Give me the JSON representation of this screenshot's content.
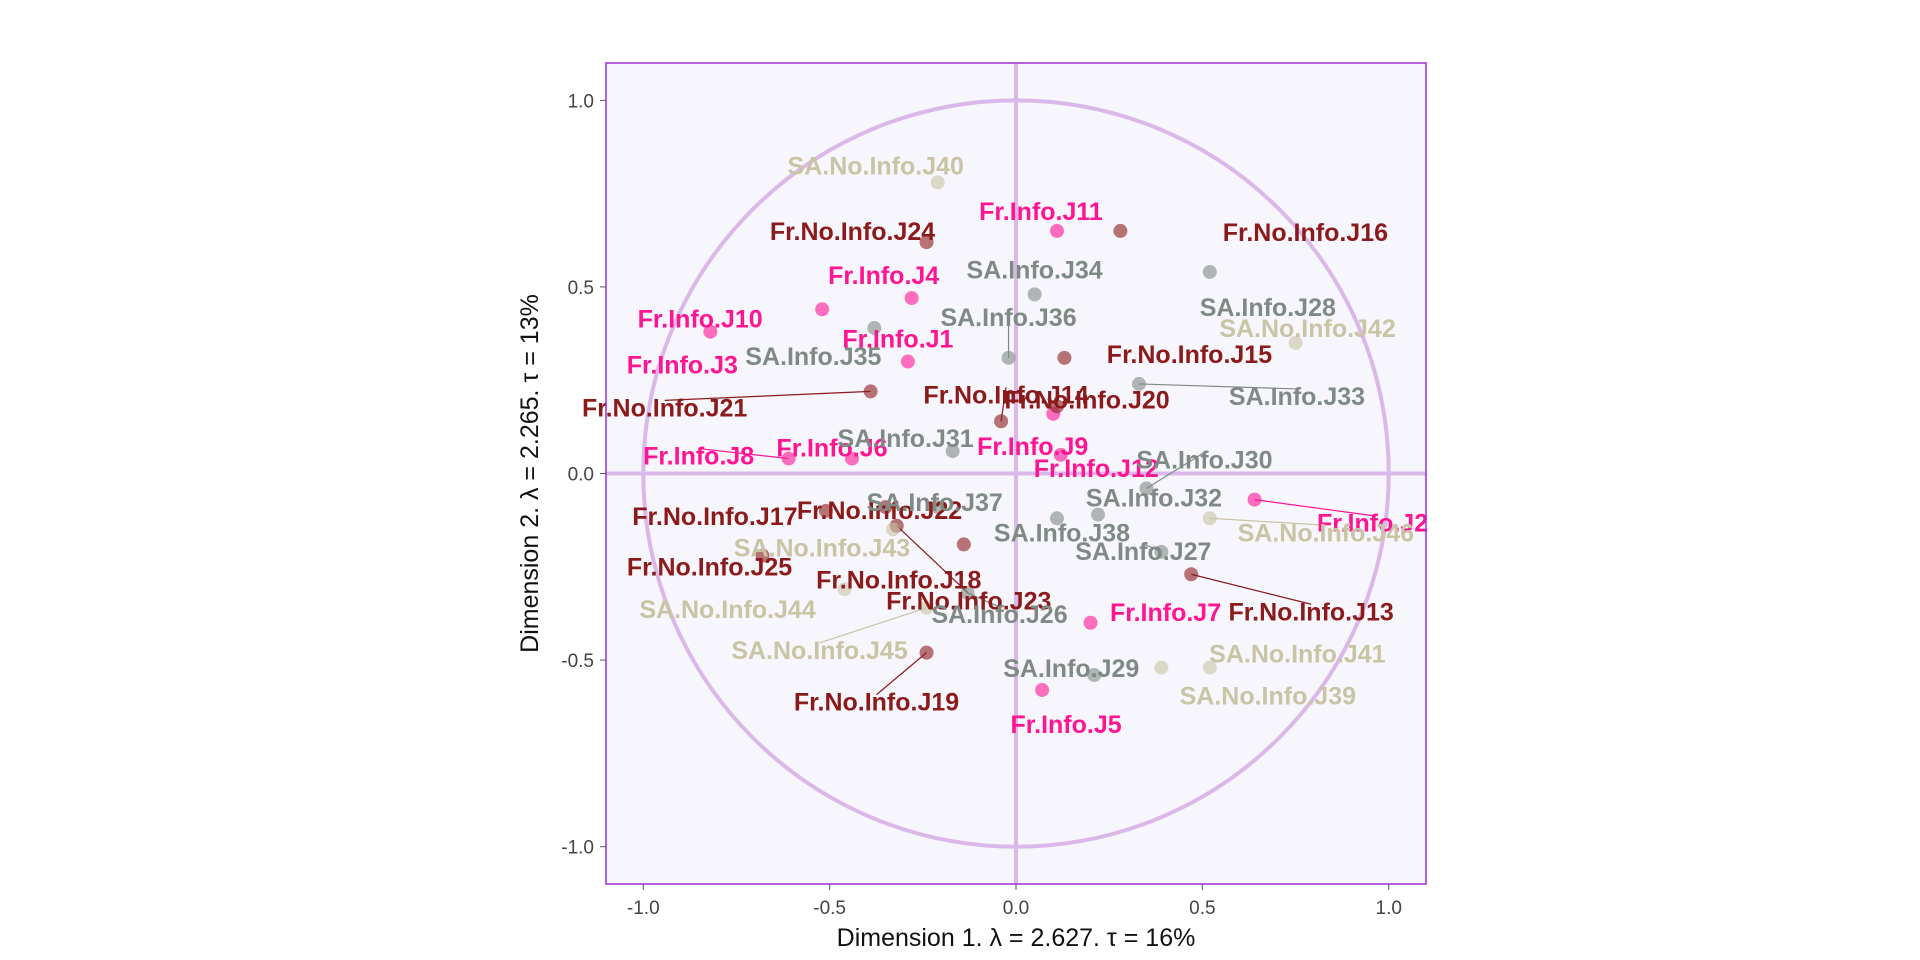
{
  "chart_data": {
    "type": "scatter",
    "xlabel": "Dimension 1.   λ = 2.627.  τ = 16%",
    "ylabel": "Dimension 2.   λ = 2.265.  τ = 13%",
    "xlim": [
      -1.1,
      1.1
    ],
    "ylim": [
      -1.1,
      1.1
    ],
    "x_ticks": [
      -1.0,
      -0.5,
      0.0,
      0.5,
      1.0
    ],
    "y_ticks": [
      -1.0,
      -0.5,
      0.0,
      0.5,
      1.0
    ],
    "x_tick_labels": [
      "-1.0",
      "-0.5",
      "0.0",
      "0.5",
      "1.0"
    ],
    "y_tick_labels": [
      "-1.0",
      "-0.5",
      "0.0",
      "0.5",
      "1.0"
    ],
    "grid": false,
    "unit_circle": true,
    "colors": {
      "Fr.Info": "#ff1493",
      "Fr.No.Info": "#8b1a1a",
      "SA.Info": "#7f8a84",
      "SA.No.Info": "#c9c4a4",
      "panel_background": "#f8f6fd",
      "panel_border": "#9b30d8",
      "circle": "#dab8ea"
    },
    "points": [
      {
        "name": "Fr.Info.J1",
        "group": "Fr.Info",
        "x": -0.29,
        "y": 0.3
      },
      {
        "name": "Fr.Info.J2",
        "group": "Fr.Info",
        "x": 0.64,
        "y": -0.07
      },
      {
        "name": "Fr.Info.J3",
        "group": "Fr.Info",
        "x": -0.82,
        "y": 0.38
      },
      {
        "name": "Fr.Info.J4",
        "group": "Fr.Info",
        "x": -0.28,
        "y": 0.47
      },
      {
        "name": "Fr.Info.J5",
        "group": "Fr.Info",
        "x": 0.07,
        "y": -0.58
      },
      {
        "name": "Fr.Info.J6",
        "group": "Fr.Info",
        "x": -0.44,
        "y": 0.04
      },
      {
        "name": "Fr.Info.J7",
        "group": "Fr.Info",
        "x": 0.2,
        "y": -0.4
      },
      {
        "name": "Fr.Info.J8",
        "group": "Fr.Info",
        "x": -0.61,
        "y": 0.04
      },
      {
        "name": "Fr.Info.J9",
        "group": "Fr.Info",
        "x": 0.12,
        "y": 0.05
      },
      {
        "name": "Fr.Info.J10",
        "group": "Fr.Info",
        "x": -0.52,
        "y": 0.44
      },
      {
        "name": "Fr.Info.J11",
        "group": "Fr.Info",
        "x": 0.11,
        "y": 0.65
      },
      {
        "name": "Fr.Info.J12",
        "group": "Fr.Info",
        "x": 0.1,
        "y": 0.16
      },
      {
        "name": "Fr.No.Info.J13",
        "group": "Fr.No.Info",
        "x": 0.47,
        "y": -0.27
      },
      {
        "name": "Fr.No.Info.J14",
        "group": "Fr.No.Info",
        "x": -0.04,
        "y": 0.14
      },
      {
        "name": "Fr.No.Info.J15",
        "group": "Fr.No.Info",
        "x": 0.13,
        "y": 0.31
      },
      {
        "name": "Fr.No.Info.J16",
        "group": "Fr.No.Info",
        "x": 0.28,
        "y": 0.65
      },
      {
        "name": "Fr.No.Info.J17",
        "group": "Fr.No.Info",
        "x": -0.51,
        "y": -0.1
      },
      {
        "name": "Fr.No.Info.J18",
        "group": "Fr.No.Info",
        "x": -0.14,
        "y": -0.19
      },
      {
        "name": "Fr.No.Info.J19",
        "group": "Fr.No.Info",
        "x": -0.24,
        "y": -0.48
      },
      {
        "name": "Fr.No.Info.J20",
        "group": "Fr.No.Info",
        "x": 0.11,
        "y": 0.18
      },
      {
        "name": "Fr.No.Info.J21",
        "group": "Fr.No.Info",
        "x": -0.39,
        "y": 0.22
      },
      {
        "name": "Fr.No.Info.J22",
        "group": "Fr.No.Info",
        "x": -0.35,
        "y": -0.09
      },
      {
        "name": "Fr.No.Info.J23",
        "group": "Fr.No.Info",
        "x": -0.32,
        "y": -0.14
      },
      {
        "name": "Fr.No.Info.J24",
        "group": "Fr.No.Info",
        "x": -0.24,
        "y": 0.62
      },
      {
        "name": "Fr.No.Info.J25",
        "group": "Fr.No.Info",
        "x": -0.68,
        "y": -0.22
      },
      {
        "name": "SA.Info.J26",
        "group": "SA.Info",
        "x": -0.13,
        "y": -0.32
      },
      {
        "name": "SA.Info.J27",
        "group": "SA.Info",
        "x": 0.39,
        "y": -0.21
      },
      {
        "name": "SA.Info.J28",
        "group": "SA.Info",
        "x": 0.52,
        "y": 0.54
      },
      {
        "name": "SA.Info.J29",
        "group": "SA.Info",
        "x": 0.21,
        "y": -0.54
      },
      {
        "name": "SA.Info.J30",
        "group": "SA.Info",
        "x": 0.35,
        "y": -0.04
      },
      {
        "name": "SA.Info.J31",
        "group": "SA.Info",
        "x": -0.17,
        "y": 0.06
      },
      {
        "name": "SA.Info.J32",
        "group": "SA.Info",
        "x": 0.22,
        "y": -0.11
      },
      {
        "name": "SA.Info.J33",
        "group": "SA.Info",
        "x": 0.33,
        "y": 0.24
      },
      {
        "name": "SA.Info.J34",
        "group": "SA.Info",
        "x": 0.05,
        "y": 0.48
      },
      {
        "name": "SA.Info.J35",
        "group": "SA.Info",
        "x": -0.38,
        "y": 0.39
      },
      {
        "name": "SA.Info.J36",
        "group": "SA.Info",
        "x": -0.02,
        "y": 0.31
      },
      {
        "name": "SA.Info.J37",
        "group": "SA.Info",
        "x": -0.21,
        "y": -0.09
      },
      {
        "name": "SA.Info.J38",
        "group": "SA.Info",
        "x": 0.11,
        "y": -0.12
      },
      {
        "name": "SA.No.Info.J39",
        "group": "SA.No.Info",
        "x": 0.52,
        "y": -0.52
      },
      {
        "name": "SA.No.Info.J40",
        "group": "SA.No.Info",
        "x": -0.21,
        "y": 0.78
      },
      {
        "name": "SA.No.Info.J41",
        "group": "SA.No.Info",
        "x": 0.39,
        "y": -0.52
      },
      {
        "name": "SA.No.Info.J42",
        "group": "SA.No.Info",
        "x": 0.75,
        "y": 0.35
      },
      {
        "name": "SA.No.Info.J43",
        "group": "SA.No.Info",
        "x": -0.33,
        "y": -0.15
      },
      {
        "name": "SA.No.Info.J44",
        "group": "SA.No.Info",
        "x": -0.46,
        "y": -0.31
      },
      {
        "name": "SA.No.Info.J45",
        "group": "SA.No.Info",
        "x": -0.24,
        "y": -0.36
      },
      {
        "name": "SA.No.Info.J46",
        "group": "SA.No.Info",
        "x": 0.52,
        "y": -0.12
      }
    ]
  }
}
